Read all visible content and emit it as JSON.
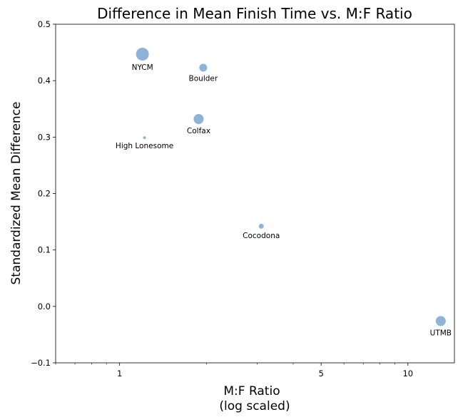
{
  "chart_data": {
    "type": "scatter",
    "title": "Difference in Mean Finish Time vs. M:F Ratio",
    "xlabel_line1": "M:F Ratio",
    "xlabel_line2": "(log scaled)",
    "ylabel": "Standardized Mean Difference",
    "xscale": "log",
    "xlim": [
      0.6,
      14.5
    ],
    "ylim": [
      -0.1,
      0.5
    ],
    "xticks": [
      {
        "value": 1,
        "label": "1"
      },
      {
        "value": 5,
        "label": "5"
      },
      {
        "value": 10,
        "label": "10"
      }
    ],
    "yticks": [
      {
        "value": 0.5,
        "label": "0.5"
      },
      {
        "value": 0.4,
        "label": "0.4"
      },
      {
        "value": 0.3,
        "label": "0.3"
      },
      {
        "value": 0.2,
        "label": "0.2"
      },
      {
        "value": 0.1,
        "label": "0.1"
      },
      {
        "value": 0.0,
        "label": "0.0"
      },
      {
        "value": -0.1,
        "label": "−0.1"
      }
    ],
    "grid": false,
    "legend": "none",
    "marker_color": "#7aa6cf",
    "points": [
      {
        "label": "NYCM",
        "x": 1.2,
        "y": 0.447,
        "size": 9
      },
      {
        "label": "Boulder",
        "x": 1.95,
        "y": 0.423,
        "size": 5.5
      },
      {
        "label": "Colfax",
        "x": 1.88,
        "y": 0.332,
        "size": 7
      },
      {
        "label": "High Lonesome",
        "x": 1.22,
        "y": 0.299,
        "size": 2
      },
      {
        "label": "Cocodona",
        "x": 3.1,
        "y": 0.142,
        "size": 3.5
      },
      {
        "label": "UTMB",
        "x": 13.0,
        "y": -0.026,
        "size": 7
      }
    ]
  }
}
